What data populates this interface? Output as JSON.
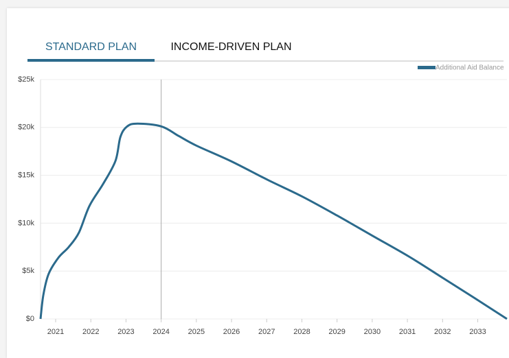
{
  "tabs": [
    "STANDARD PLAN",
    "INCOME-DRIVEN PLAN"
  ],
  "active_tab": 0,
  "chart_data": {
    "type": "line",
    "series": [
      {
        "name": "Additional Aid Balance",
        "color": "#2b6a8c",
        "x": [
          2020.57,
          2020.65,
          2020.8,
          2021.08,
          2021.37,
          2021.66,
          2021.96,
          2022.35,
          2022.7,
          2022.84,
          2023.03,
          2023.33,
          2024.01,
          2024.5,
          2025.0,
          2025.97,
          2027.04,
          2028.0,
          2029.0,
          2030.0,
          2031.05,
          2032.0,
          2032.9,
          2033.83
        ],
        "values": [
          0,
          2500,
          4700,
          6400,
          7500,
          9000,
          11800,
          14100,
          16500,
          19000,
          20100,
          20400,
          20100,
          19100,
          18100,
          16500,
          14500,
          12800,
          10800,
          8700,
          6500,
          4300,
          2200,
          0
        ]
      }
    ],
    "xlim": [
      2020.57,
      2033.83
    ],
    "xticks": [
      2021,
      2022,
      2023,
      2024,
      2025,
      2026,
      2027,
      2028,
      2029,
      2030,
      2031,
      2032,
      2033
    ],
    "ylim": [
      0,
      25000
    ],
    "yticks": [
      {
        "value": 0,
        "label": "$0"
      },
      {
        "value": 5000,
        "label": "$5k"
      },
      {
        "value": 10000,
        "label": "$10k"
      },
      {
        "value": 15000,
        "label": "$15k"
      },
      {
        "value": 20000,
        "label": "$20k"
      },
      {
        "value": 25000,
        "label": "$25k"
      }
    ],
    "cursor_x": 2024,
    "grid": true,
    "legend": "top-right"
  }
}
